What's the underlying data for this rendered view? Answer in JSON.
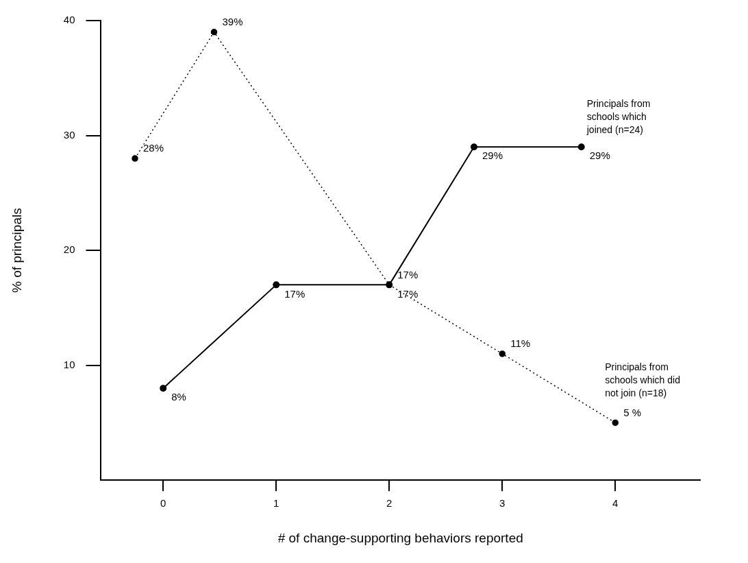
{
  "chart_data": {
    "type": "line",
    "xlabel": "# of change-supporting behaviors reported",
    "ylabel": "% of principals",
    "xlim": [
      -0.55,
      4.75
    ],
    "xticks": [
      0,
      1,
      2,
      3,
      4
    ],
    "ylim": [
      0,
      40
    ],
    "yticks": [
      10,
      20,
      30,
      40
    ],
    "grid": false,
    "legend": false,
    "marker": "circle",
    "series": [
      {
        "name": "Principals from schools which joined (n=24)",
        "color": "#000000",
        "line_style": "solid",
        "x": [
          0,
          1,
          2,
          2.75,
          3.7
        ],
        "values": [
          8,
          17,
          17,
          29,
          29
        ],
        "value_labels": [
          "8%",
          "17%",
          "17%",
          "29%",
          "29%"
        ]
      },
      {
        "name": "Principals from schools which did not join (n=18)",
        "color": "#000000",
        "line_style": "dotted",
        "x": [
          -0.25,
          0.45,
          2,
          3,
          4
        ],
        "values": [
          28,
          39,
          17,
          11,
          5
        ],
        "value_labels": [
          "28%",
          "39%",
          "17%",
          "11%",
          "5 %"
        ]
      }
    ]
  }
}
